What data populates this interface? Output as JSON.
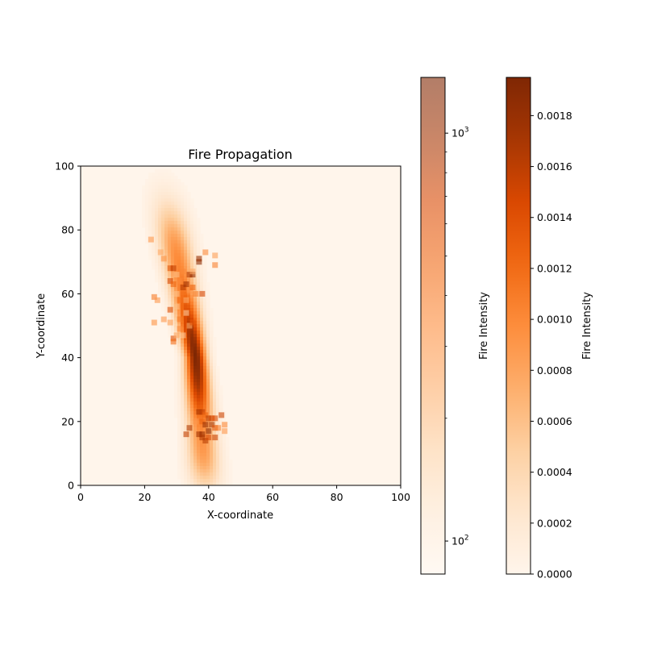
{
  "chart_data": {
    "type": "heatmap",
    "title": "Fire Propagation",
    "xlabel": "X-coordinate",
    "ylabel": "Y-coordinate",
    "xlim": [
      0,
      100
    ],
    "ylim": [
      0,
      100
    ],
    "xticks": [
      "0",
      "20",
      "40",
      "60",
      "80",
      "100"
    ],
    "yticks": [
      "0",
      "20",
      "40",
      "60",
      "80",
      "100"
    ],
    "colormap": [
      "#fff5eb",
      "#fee6ce",
      "#fdd0a2",
      "#fdae6b",
      "#fd8d3c",
      "#f16913",
      "#d94801",
      "#a63603",
      "#7f2704"
    ],
    "heatmap": {
      "description": "fire intensity density field",
      "ridge": [
        [
          39,
          0
        ],
        [
          36,
          40
        ],
        [
          25,
          100
        ]
      ],
      "intensity_range": [
        0,
        0.00195
      ]
    },
    "scatter": {
      "marker": "square",
      "alpha": 0.6,
      "color_scale": "log",
      "points": [
        [
          22,
          77,
          300
        ],
        [
          25,
          73,
          250
        ],
        [
          26,
          71,
          320
        ],
        [
          28,
          68,
          600
        ],
        [
          29,
          68,
          800
        ],
        [
          30,
          66,
          200
        ],
        [
          32,
          67,
          350
        ],
        [
          34,
          66,
          900
        ],
        [
          35,
          66,
          1100
        ],
        [
          35,
          67,
          250
        ],
        [
          37,
          70,
          1200
        ],
        [
          37,
          71,
          1100
        ],
        [
          39,
          73,
          350
        ],
        [
          42,
          72,
          280
        ],
        [
          42,
          69,
          380
        ],
        [
          28,
          64,
          700
        ],
        [
          29,
          63,
          500
        ],
        [
          31,
          64,
          350
        ],
        [
          32,
          62,
          850
        ],
        [
          33,
          63,
          1000
        ],
        [
          34,
          61,
          300
        ],
        [
          35,
          62,
          500
        ],
        [
          36,
          60,
          380
        ],
        [
          38,
          60,
          700
        ],
        [
          30,
          60,
          200
        ],
        [
          31,
          58,
          450
        ],
        [
          33,
          58,
          250
        ],
        [
          23,
          59,
          400
        ],
        [
          24,
          58,
          300
        ],
        [
          28,
          55,
          650
        ],
        [
          30,
          56,
          200
        ],
        [
          33,
          54,
          180
        ],
        [
          26,
          52,
          300
        ],
        [
          28,
          51,
          280
        ],
        [
          31,
          52,
          400
        ],
        [
          34,
          50,
          250
        ],
        [
          35,
          51,
          600
        ],
        [
          23,
          51,
          320
        ],
        [
          31,
          49,
          350
        ],
        [
          29,
          46,
          650
        ],
        [
          30,
          47,
          250
        ],
        [
          32,
          47,
          180
        ],
        [
          29,
          45,
          450
        ],
        [
          37,
          23,
          1000
        ],
        [
          38,
          23,
          800
        ],
        [
          39,
          22,
          500
        ],
        [
          40,
          21,
          850
        ],
        [
          41,
          21,
          700
        ],
        [
          42,
          21,
          650
        ],
        [
          44,
          22,
          750
        ],
        [
          38,
          20,
          500
        ],
        [
          39,
          19,
          1100
        ],
        [
          41,
          19,
          950
        ],
        [
          42,
          18,
          600
        ],
        [
          43,
          18,
          380
        ],
        [
          45,
          19,
          350
        ],
        [
          45,
          17,
          300
        ],
        [
          34,
          18,
          900
        ],
        [
          33,
          16,
          800
        ],
        [
          37,
          16,
          1000
        ],
        [
          38,
          16,
          1100
        ],
        [
          38,
          15,
          900
        ],
        [
          39,
          14,
          850
        ],
        [
          40,
          15,
          700
        ],
        [
          42,
          15,
          750
        ],
        [
          36,
          20,
          300
        ],
        [
          40,
          17,
          1200
        ]
      ]
    },
    "colorbars": [
      {
        "label": "Fire Intensity",
        "scale": "log",
        "range": [
          83,
          1370
        ],
        "tick_labels": [
          {
            "base": "10",
            "exp": "2",
            "value": 100
          },
          {
            "base": "10",
            "exp": "3",
            "value": 1000
          }
        ],
        "minor_ticks": [
          200,
          300,
          400,
          500,
          600,
          700,
          800,
          900
        ],
        "alpha": 0.6
      },
      {
        "label": "Fire Intensity",
        "scale": "linear",
        "range": [
          0,
          0.00195
        ],
        "tick_values": [
          0,
          0.0002,
          0.0004,
          0.0006,
          0.0008,
          0.001,
          0.0012,
          0.0014,
          0.0016,
          0.0018
        ],
        "tick_labels": [
          "0.0000",
          "0.0002",
          "0.0004",
          "0.0006",
          "0.0008",
          "0.0010",
          "0.0012",
          "0.0014",
          "0.0016",
          "0.0018"
        ]
      }
    ]
  }
}
